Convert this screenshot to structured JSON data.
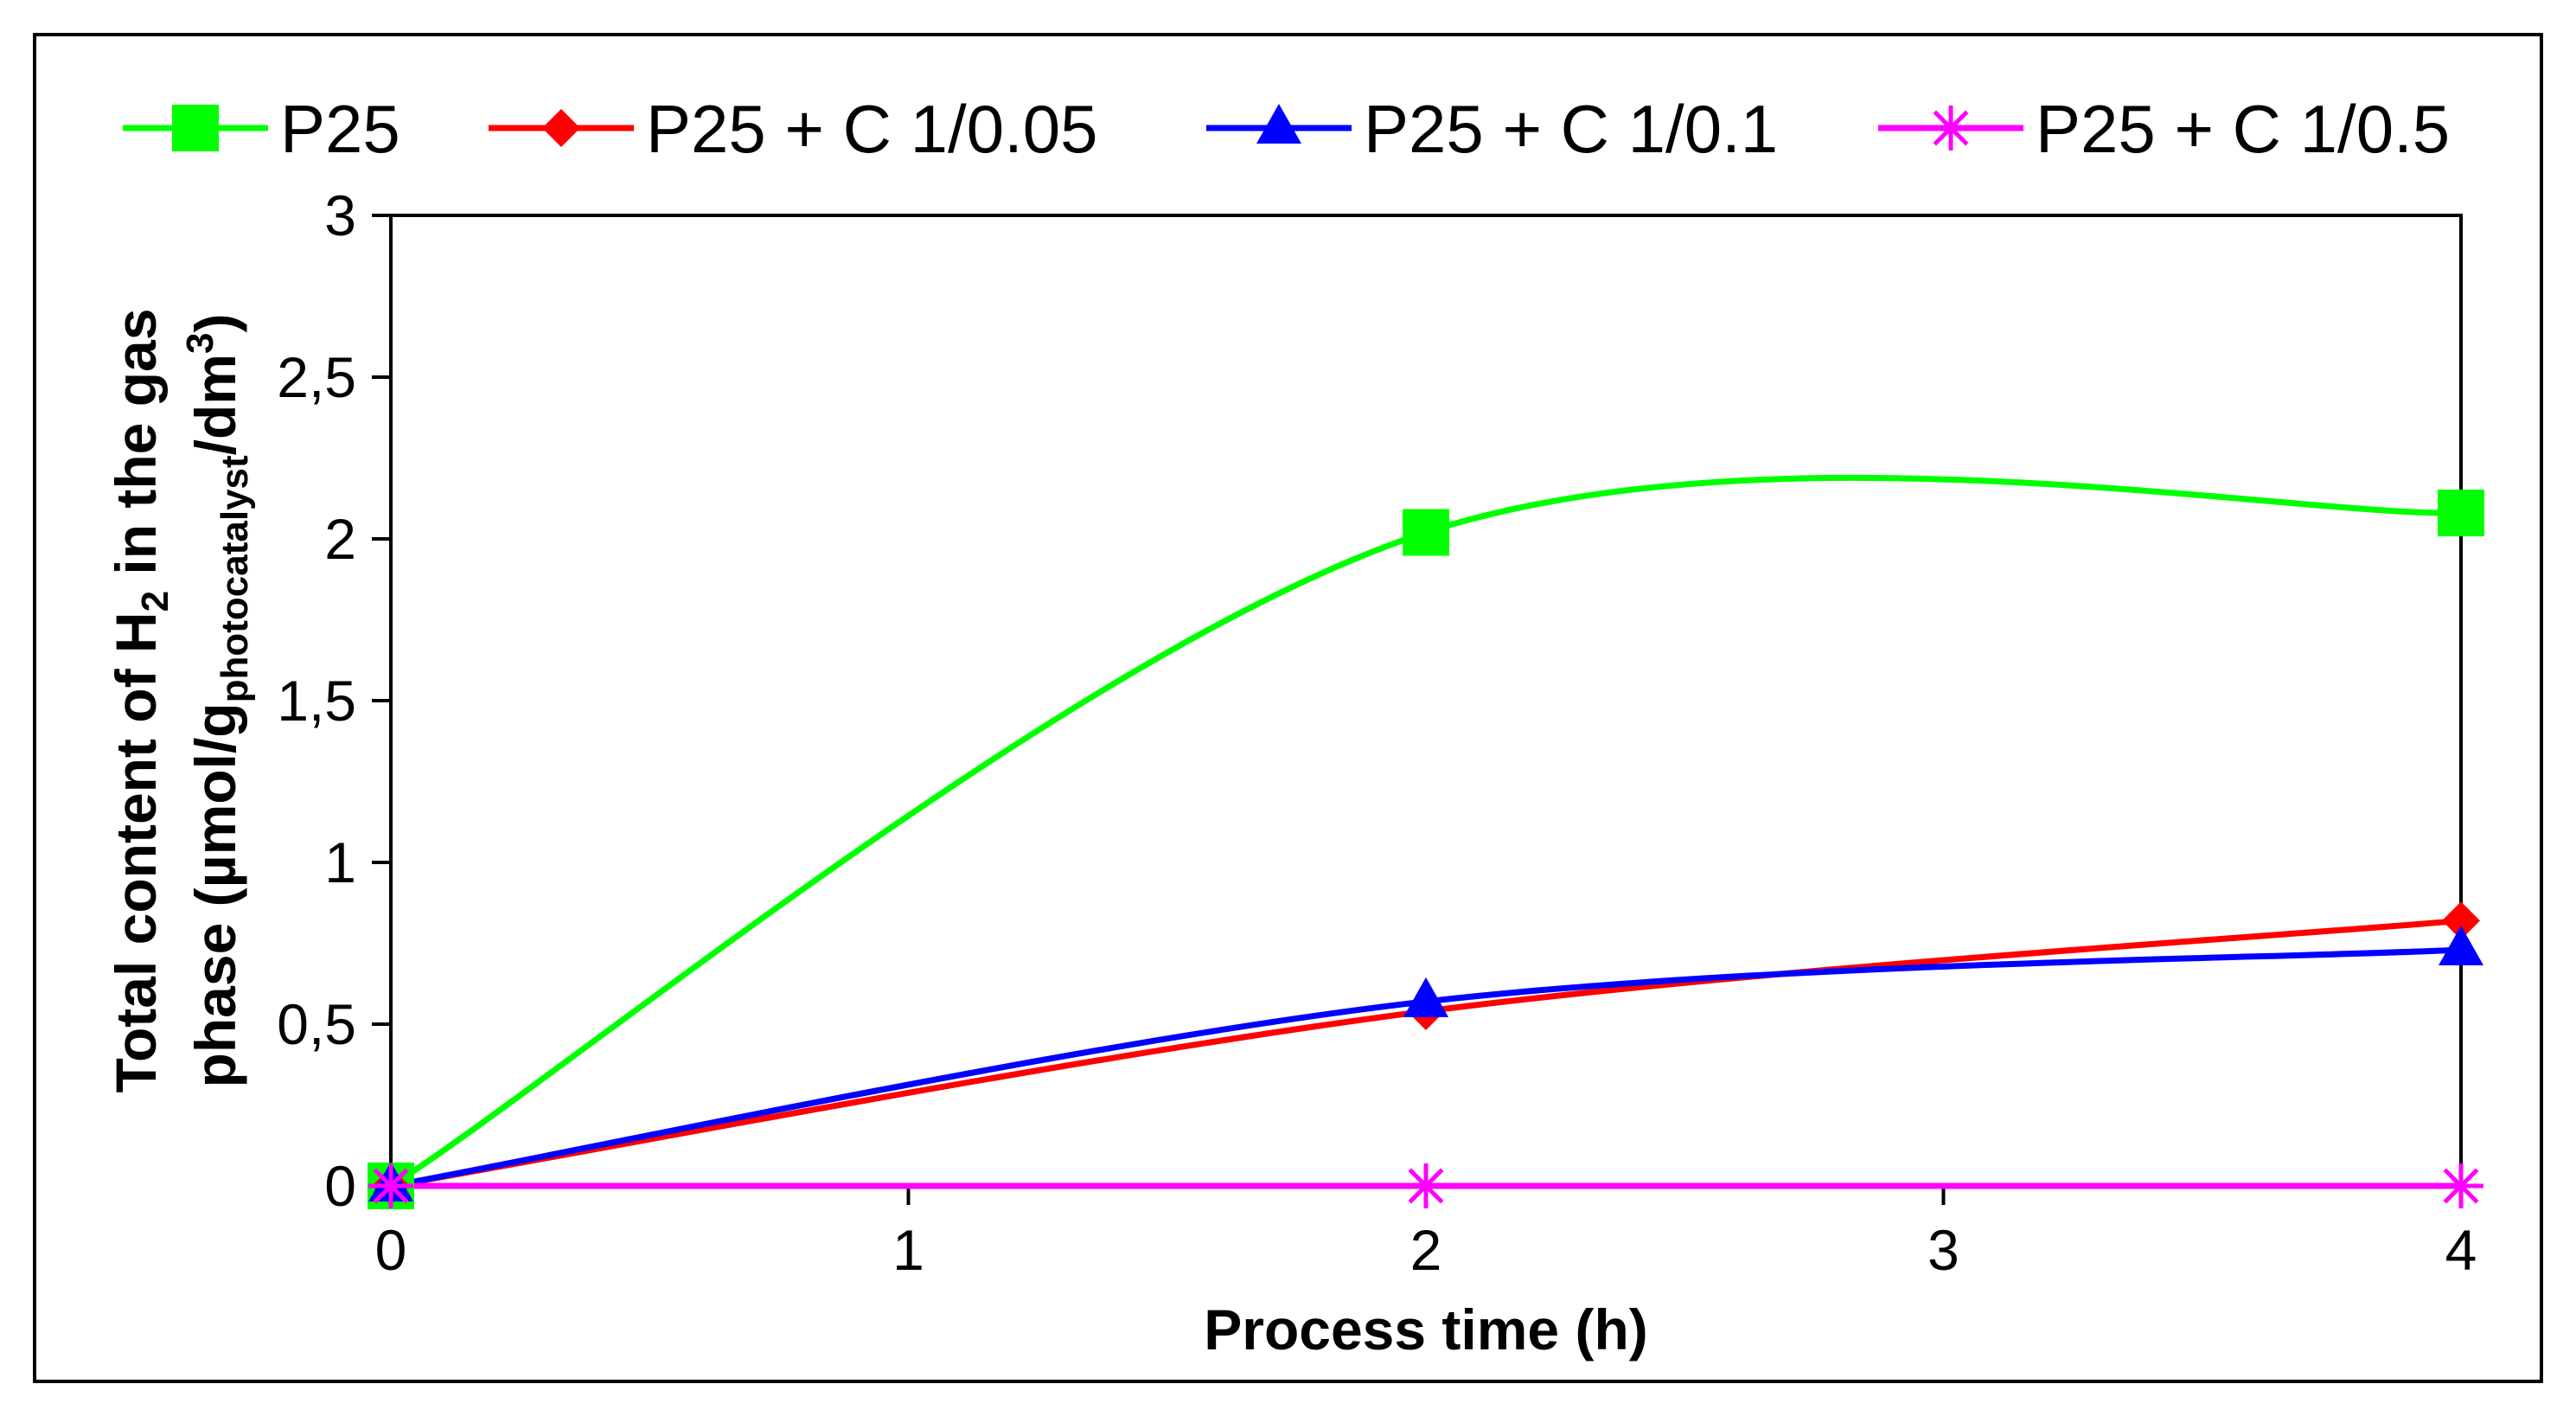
{
  "chart_data": {
    "type": "line",
    "title": "",
    "xlabel": "Process time (h)",
    "ylabel": {
      "line1_a": "Total content of H",
      "line1_sub": "2",
      "line1_b": " in the gas",
      "line2_a": "phase (µmol/g",
      "line2_sub": "photocatalyst",
      "line2_b": "/dm",
      "line2_sup": "3",
      "line2_c": ")"
    },
    "xlim": [
      0,
      4
    ],
    "ylim": [
      0,
      3
    ],
    "x_ticks": [
      0,
      1,
      2,
      3,
      4
    ],
    "x_tick_labels": [
      "0",
      "1",
      "2",
      "3",
      "4"
    ],
    "y_ticks": [
      0,
      0.5,
      1,
      1.5,
      2,
      2.5,
      3
    ],
    "y_tick_labels": [
      "0",
      "0,5",
      "1",
      "1,5",
      "2",
      "2,5",
      "3"
    ],
    "grid": false,
    "legend_position": "top",
    "x": [
      0,
      2,
      4
    ],
    "series": [
      {
        "name": "P25",
        "values": [
          0,
          2.02,
          2.08
        ],
        "color": "#00ff00",
        "marker": "square"
      },
      {
        "name": "P25 + C 1/0.05",
        "values": [
          0,
          0.54,
          0.82
        ],
        "color": "#ff0000",
        "marker": "diamond"
      },
      {
        "name": "P25 + C 1/0.1",
        "values": [
          0,
          0.57,
          0.73
        ],
        "color": "#0000ff",
        "marker": "triangle"
      },
      {
        "name": "P25 + C 1/0.5",
        "values": [
          0,
          0,
          0
        ],
        "color": "#ff00ff",
        "marker": "asterisk"
      }
    ]
  }
}
